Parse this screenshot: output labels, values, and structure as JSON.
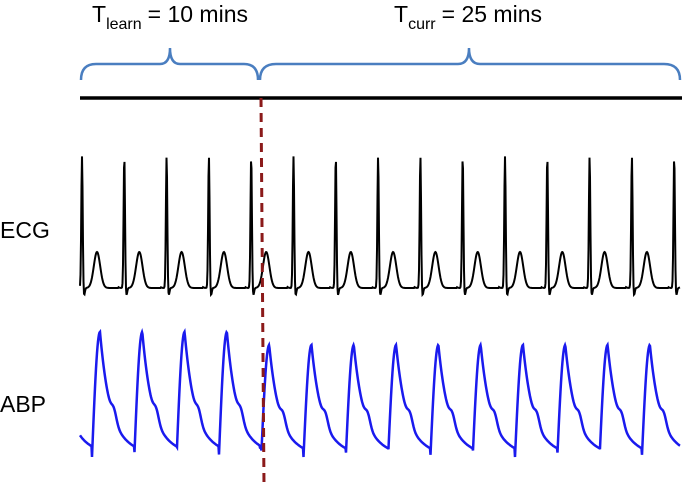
{
  "header": {
    "learn": {
      "symbol": "T",
      "subscript": "learn",
      "text": "= 10 mins"
    },
    "curr": {
      "symbol": "T",
      "subscript": "curr",
      "text": "= 25 mins"
    }
  },
  "signals": {
    "ecg": "ECG",
    "abp": "ABP"
  }
}
